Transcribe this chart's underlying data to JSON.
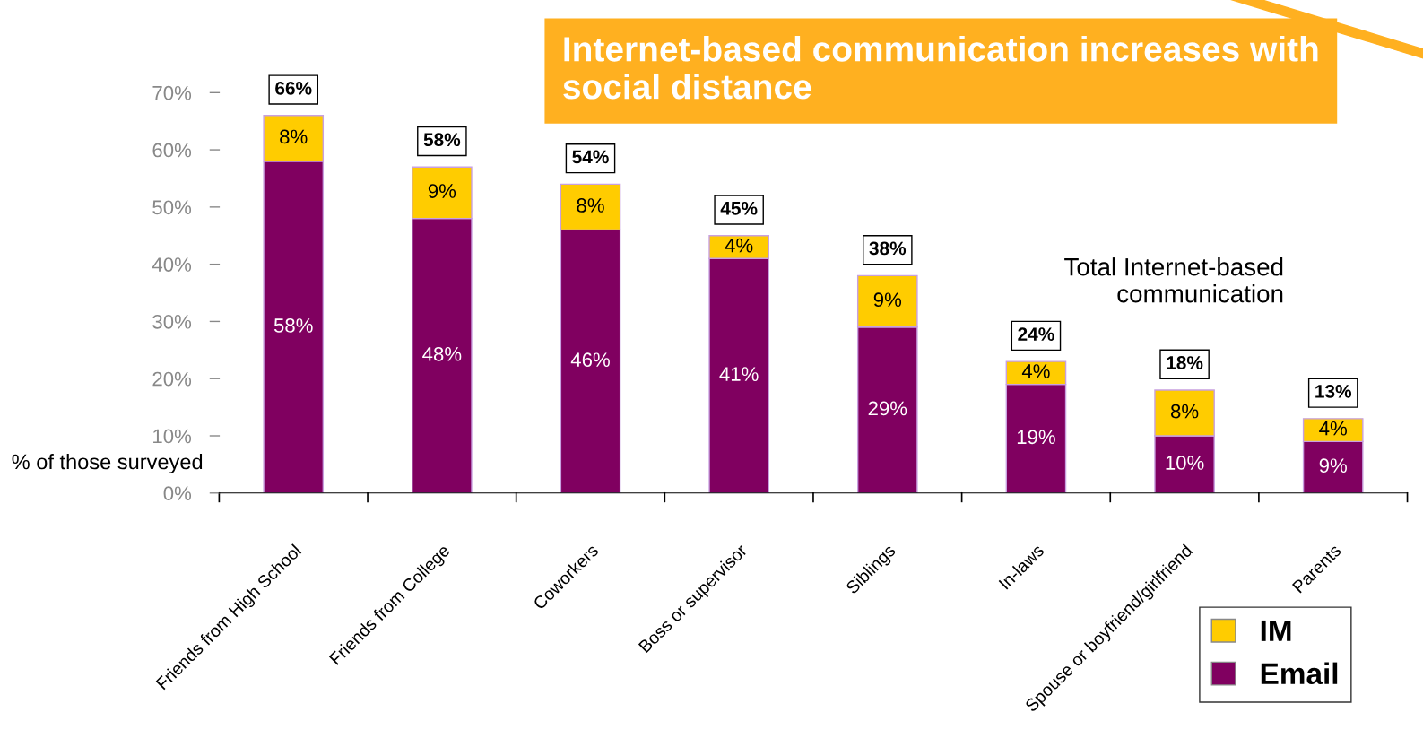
{
  "chart_data": {
    "type": "bar",
    "stacked": true,
    "categories": [
      "Friends from High School",
      "Friends from College",
      "Coworkers",
      "Boss or supervisor",
      "Siblings",
      "In-laws",
      "Spouse or boyfriend/girlfriend",
      "Parents"
    ],
    "series": [
      {
        "name": "Email",
        "color": "#800060",
        "values": [
          58,
          48,
          46,
          41,
          29,
          19,
          10,
          9
        ],
        "value_labels": [
          "58%",
          "48%",
          "46%",
          "41%",
          "29%",
          "19%",
          "10%",
          "9%"
        ]
      },
      {
        "name": "IM",
        "color": "#ffcc00",
        "values": [
          8,
          9,
          8,
          4,
          9,
          4,
          8,
          4
        ],
        "value_labels": [
          "8%",
          "9%",
          "8%",
          "4%",
          "9%",
          "4%",
          "8%",
          "4%"
        ]
      }
    ],
    "totals": [
      "66%",
      "58%",
      "54%",
      "45%",
      "38%",
      "24%",
      "18%",
      "13%"
    ],
    "ylabel": "% of those surveyed",
    "ylim": [
      0,
      70
    ],
    "yticks": [
      {
        "value": 0,
        "label": "0%"
      },
      {
        "value": 10,
        "label": "10%"
      },
      {
        "value": 20,
        "label": "20%"
      },
      {
        "value": 30,
        "label": "30%"
      },
      {
        "value": 40,
        "label": "40%"
      },
      {
        "value": 50,
        "label": "50%"
      },
      {
        "value": 60,
        "label": "60%"
      },
      {
        "value": 70,
        "label": "70%"
      }
    ],
    "annotations": [
      "Internet-based communication increases with social distance",
      "Total Internet-based communication"
    ],
    "legend": "bottom right"
  }
}
